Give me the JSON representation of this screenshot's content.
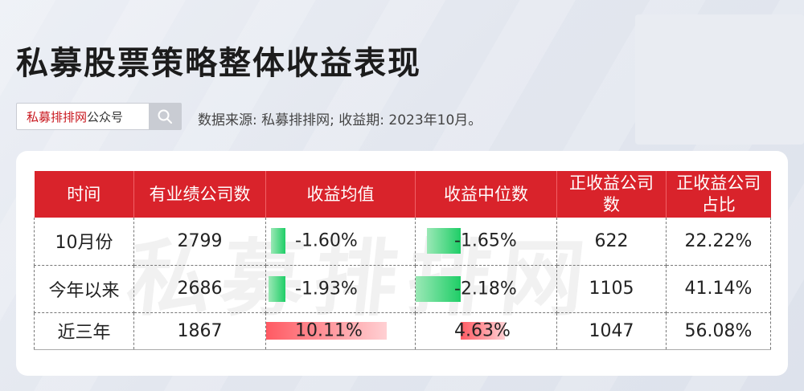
{
  "title": "私募股票策略整体收益表现",
  "search": {
    "brand": "私募排排网",
    "suffix": "公众号",
    "icon": "search-icon"
  },
  "source_line": "数据来源: 私募排排网; 收益期: 2023年10月。",
  "watermark": "私募排排网",
  "colors": {
    "header": "#d9232b",
    "negative_bar": "#1fce67",
    "positive_bar": "#ff5a63"
  },
  "table": {
    "headers": [
      "时间",
      "有业绩公司数",
      "收益均值",
      "收益中位数",
      "正收益公司数",
      "正收益公司占比"
    ],
    "rows": [
      {
        "period": "10月份",
        "count": "2799",
        "mean": "-1.60%",
        "median": "-1.65%",
        "positive_count": "622",
        "positive_ratio": "22.22%",
        "mean_value": -1.6,
        "median_value": -1.65
      },
      {
        "period": "今年以来",
        "count": "2686",
        "mean": "-1.93%",
        "median": "-2.18%",
        "positive_count": "1105",
        "positive_ratio": "41.14%",
        "mean_value": -1.93,
        "median_value": -2.18
      },
      {
        "period": "近三年",
        "count": "1867",
        "mean": "10.11%",
        "median": "4.63%",
        "positive_count": "1047",
        "positive_ratio": "56.08%",
        "mean_value": 10.11,
        "median_value": 4.63
      }
    ]
  }
}
